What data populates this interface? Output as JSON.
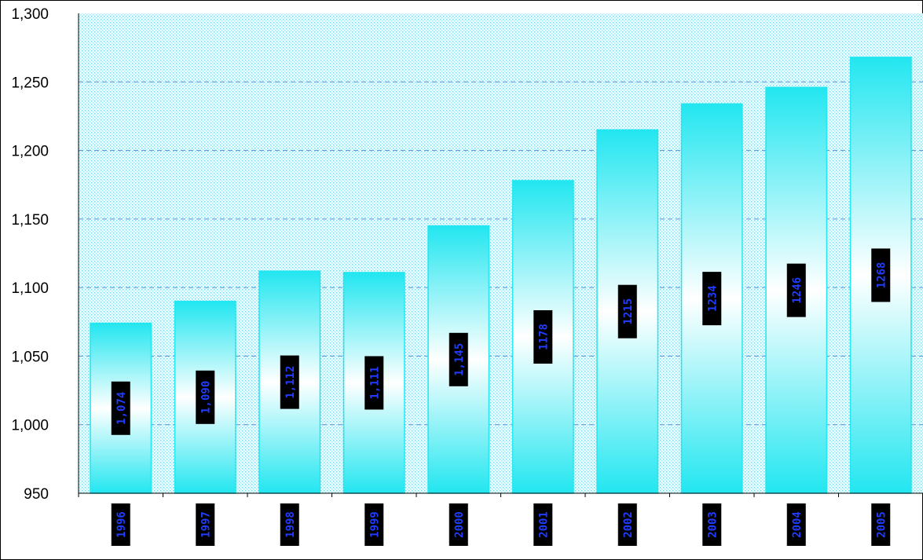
{
  "chart_data": {
    "type": "bar",
    "categories": [
      "1996",
      "1997",
      "1998",
      "1999",
      "2000",
      "2001",
      "2002",
      "2003",
      "2004",
      "2005"
    ],
    "values": [
      1074,
      1090,
      1112,
      1111,
      1145,
      1178,
      1215,
      1234,
      1246,
      1268
    ],
    "data_labels": [
      "1,074",
      "1,090",
      "1,112",
      "1,111",
      "1,145",
      "1178",
      "1215",
      "1234",
      "1246",
      "1268"
    ],
    "y_ticks": [
      "950",
      "1,000",
      "1,050",
      "1,100",
      "1,150",
      "1,200",
      "1,250",
      "1,300"
    ],
    "ylim": [
      950,
      1300
    ],
    "title": "",
    "xlabel": "",
    "ylabel": "",
    "grid": true,
    "colors": {
      "bar_edge": "#22e6f0",
      "bar_light": "#ffffff",
      "plot_bg": "#eaf9fb",
      "plot_dots": "#58d6ea",
      "gridline": "#5a8fd8",
      "label_box": "#000000",
      "label_text": "#1f3cff"
    }
  }
}
